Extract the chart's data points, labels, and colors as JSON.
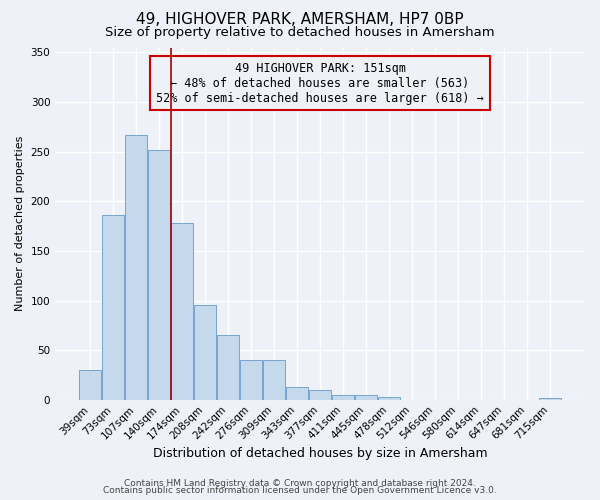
{
  "title": "49, HIGHOVER PARK, AMERSHAM, HP7 0BP",
  "subtitle": "Size of property relative to detached houses in Amersham",
  "xlabel": "Distribution of detached houses by size in Amersham",
  "ylabel": "Number of detached properties",
  "bar_labels": [
    "39sqm",
    "73sqm",
    "107sqm",
    "140sqm",
    "174sqm",
    "208sqm",
    "242sqm",
    "276sqm",
    "309sqm",
    "343sqm",
    "377sqm",
    "411sqm",
    "445sqm",
    "478sqm",
    "512sqm",
    "546sqm",
    "580sqm",
    "614sqm",
    "647sqm",
    "681sqm",
    "715sqm"
  ],
  "bar_values": [
    30,
    186,
    267,
    252,
    178,
    95,
    65,
    40,
    40,
    13,
    10,
    5,
    5,
    3,
    0,
    0,
    0,
    0,
    0,
    0,
    2
  ],
  "bar_color": "#c5d9ed",
  "bar_edgecolor": "#6699cc",
  "vline_x_index": 3,
  "vline_color": "#aa0000",
  "annotation_line1": "49 HIGHOVER PARK: 151sqm",
  "annotation_line2": "← 48% of detached houses are smaller (563)",
  "annotation_line3": "52% of semi-detached houses are larger (618) →",
  "annotation_box_edgecolor": "#cc0000",
  "ylim": [
    0,
    355
  ],
  "yticks": [
    0,
    50,
    100,
    150,
    200,
    250,
    300,
    350
  ],
  "footer1": "Contains HM Land Registry data © Crown copyright and database right 2024.",
  "footer2": "Contains public sector information licensed under the Open Government Licence v3.0.",
  "background_color": "#eef2f8",
  "grid_color": "#ffffff",
  "title_fontsize": 11,
  "subtitle_fontsize": 9.5,
  "xlabel_fontsize": 9,
  "ylabel_fontsize": 8,
  "tick_fontsize": 7.5,
  "footer_fontsize": 6.5,
  "annotation_fontsize": 8.5
}
